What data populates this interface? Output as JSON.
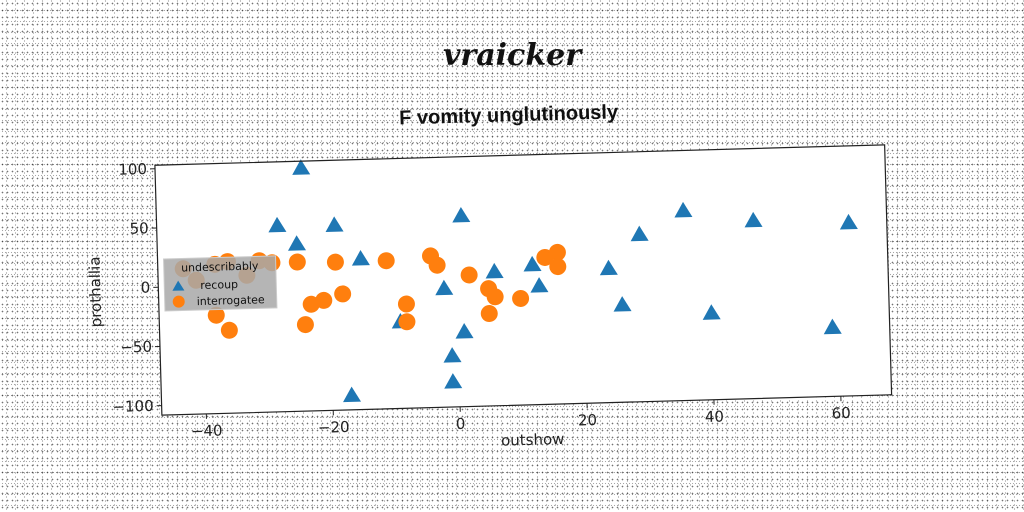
{
  "header": {
    "title": "vraicker"
  },
  "colors": {
    "series1": "#1f77b4",
    "series2": "#ff7f0e",
    "legend_bg": "#a8a8a8"
  },
  "chart_data": {
    "type": "scatter",
    "title": "F vomity unglutinously",
    "xlabel": "outshow",
    "ylabel": "prothallia",
    "xlim": [
      -47,
      68
    ],
    "ylim": [
      -108,
      103
    ],
    "xticks": [
      -40,
      -20,
      0,
      20,
      40,
      60
    ],
    "yticks": [
      100,
      50,
      0,
      -50,
      -100
    ],
    "grid": false,
    "legend": {
      "title": "undescribably",
      "placement": "center-left"
    },
    "series": [
      {
        "name": "recoup",
        "marker": "triangle",
        "points": [
          [
            -24,
            97
          ],
          [
            -28,
            49
          ],
          [
            -25,
            33
          ],
          [
            -19,
            48
          ],
          [
            -15,
            19
          ],
          [
            1,
            53
          ],
          [
            -2,
            -8
          ],
          [
            -9,
            -35
          ],
          [
            -1,
            -65
          ],
          [
            -1,
            -87
          ],
          [
            1,
            -45
          ],
          [
            6,
            5
          ],
          [
            12,
            10
          ],
          [
            13,
            -8
          ],
          [
            -17,
            -96
          ],
          [
            24,
            5
          ],
          [
            26,
            -26
          ],
          [
            29,
            33
          ],
          [
            36,
            52
          ],
          [
            40,
            -35
          ],
          [
            47,
            42
          ],
          [
            59,
            -50
          ],
          [
            62,
            38
          ]
        ]
      },
      {
        "name": "interrogatee",
        "marker": "circle",
        "points": [
          [
            -43,
            15
          ],
          [
            -41,
            5
          ],
          [
            -38,
            18
          ],
          [
            -36,
            20
          ],
          [
            -33,
            8
          ],
          [
            -38,
            -25
          ],
          [
            -36,
            -38
          ],
          [
            -31,
            20
          ],
          [
            -29,
            18
          ],
          [
            -25,
            18
          ],
          [
            -24,
            -35
          ],
          [
            -23,
            -18
          ],
          [
            -21,
            -15
          ],
          [
            -19,
            17
          ],
          [
            -18,
            -10
          ],
          [
            -11,
            17
          ],
          [
            -8,
            -35
          ],
          [
            -8,
            -20
          ],
          [
            -4,
            20
          ],
          [
            -3,
            12
          ],
          [
            2,
            3
          ],
          [
            5,
            -9
          ],
          [
            5,
            -30
          ],
          [
            6,
            -16
          ],
          [
            10,
            -18
          ],
          [
            14,
            16
          ],
          [
            16,
            20
          ],
          [
            16,
            8
          ]
        ]
      }
    ]
  }
}
